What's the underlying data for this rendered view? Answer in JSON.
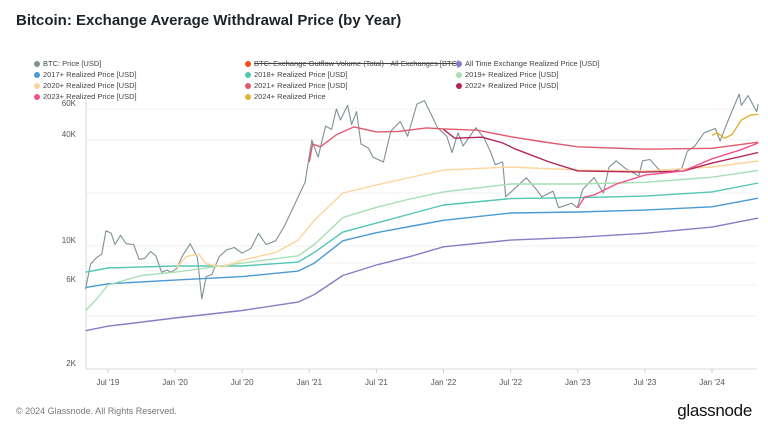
{
  "title": "Bitcoin: Exchange Average Withdrawal Price (by Year)",
  "footer": "© 2024 Glassnode. All Rights Reserved.",
  "logo": "glassnode",
  "chart_data": {
    "type": "line",
    "title": "Bitcoin: Exchange Average Withdrawal Price (by Year)",
    "y_scale": "log",
    "ylim": [
      2000,
      70000
    ],
    "xlim": [
      "2019-05",
      "2024-05"
    ],
    "grid": true,
    "legend_placement": "top",
    "y_ticks": [
      {
        "value": 2000,
        "label": "2K"
      },
      {
        "value": 4000,
        "label": ""
      },
      {
        "value": 6000,
        "label": "6K"
      },
      {
        "value": 8000,
        "label": ""
      },
      {
        "value": 10000,
        "label": "10K"
      },
      {
        "value": 20000,
        "label": ""
      },
      {
        "value": 40000,
        "label": "40K"
      },
      {
        "value": 60000,
        "label": "60K"
      }
    ],
    "x_ticks": [
      {
        "date": "2019-07",
        "label": "Jul '19"
      },
      {
        "date": "2020-01",
        "label": "Jan '20"
      },
      {
        "date": "2020-07",
        "label": "Jul '20"
      },
      {
        "date": "2021-01",
        "label": "Jan '21"
      },
      {
        "date": "2021-07",
        "label": "Jul '21"
      },
      {
        "date": "2022-01",
        "label": "Jan '22"
      },
      {
        "date": "2022-07",
        "label": "Jul '22"
      },
      {
        "date": "2023-01",
        "label": "Jan '23"
      },
      {
        "date": "2023-07",
        "label": "Jul '23"
      },
      {
        "date": "2024-01",
        "label": "Jan '24"
      }
    ],
    "series": [
      {
        "name": "BTC: Price [USD]",
        "color": "#7f9194",
        "width": 1.1,
        "points": [
          [
            "2019-05-01",
            5700
          ],
          [
            "2019-05-15",
            7900
          ],
          [
            "2019-06-01",
            8600
          ],
          [
            "2019-06-15",
            9000
          ],
          [
            "2019-06-26",
            12200
          ],
          [
            "2019-07-10",
            11800
          ],
          [
            "2019-07-20",
            10200
          ],
          [
            "2019-08-05",
            11500
          ],
          [
            "2019-08-20",
            10300
          ],
          [
            "2019-09-10",
            10200
          ],
          [
            "2019-09-25",
            8400
          ],
          [
            "2019-10-10",
            8500
          ],
          [
            "2019-10-26",
            9300
          ],
          [
            "2019-11-10",
            8800
          ],
          [
            "2019-11-25",
            7100
          ],
          [
            "2019-12-10",
            7300
          ],
          [
            "2019-12-20",
            7100
          ],
          [
            "2020-01-05",
            7400
          ],
          [
            "2020-01-20",
            8700
          ],
          [
            "2020-02-12",
            10300
          ],
          [
            "2020-03-01",
            8600
          ],
          [
            "2020-03-13",
            5000
          ],
          [
            "2020-03-25",
            6700
          ],
          [
            "2020-04-10",
            6900
          ],
          [
            "2020-04-30",
            8700
          ],
          [
            "2020-05-20",
            9500
          ],
          [
            "2020-06-10",
            9800
          ],
          [
            "2020-07-01",
            9100
          ],
          [
            "2020-07-25",
            9700
          ],
          [
            "2020-08-15",
            11800
          ],
          [
            "2020-09-05",
            10200
          ],
          [
            "2020-10-01",
            10700
          ],
          [
            "2020-10-25",
            13000
          ],
          [
            "2020-11-15",
            16000
          ],
          [
            "2020-12-01",
            19000
          ],
          [
            "2020-12-20",
            23000
          ],
          [
            "2021-01-08",
            40000
          ],
          [
            "2021-01-25",
            32000
          ],
          [
            "2021-02-15",
            48000
          ],
          [
            "2021-03-01",
            46000
          ],
          [
            "2021-03-14",
            60000
          ],
          [
            "2021-03-25",
            52000
          ],
          [
            "2021-04-14",
            63000
          ],
          [
            "2021-04-25",
            49000
          ],
          [
            "2021-05-08",
            58000
          ],
          [
            "2021-05-20",
            38000
          ],
          [
            "2021-06-10",
            36000
          ],
          [
            "2021-06-22",
            32000
          ],
          [
            "2021-07-20",
            30000
          ],
          [
            "2021-08-10",
            45000
          ],
          [
            "2021-09-05",
            51000
          ],
          [
            "2021-09-25",
            42000
          ],
          [
            "2021-10-20",
            64000
          ],
          [
            "2021-11-10",
            67000
          ],
          [
            "2021-11-28",
            56000
          ],
          [
            "2021-12-15",
            47000
          ],
          [
            "2022-01-10",
            42000
          ],
          [
            "2022-01-24",
            34000
          ],
          [
            "2022-02-10",
            44000
          ],
          [
            "2022-02-24",
            37000
          ],
          [
            "2022-03-28",
            47000
          ],
          [
            "2022-04-20",
            41000
          ],
          [
            "2022-05-08",
            34000
          ],
          [
            "2022-05-20",
            29000
          ],
          [
            "2022-06-10",
            30000
          ],
          [
            "2022-06-18",
            19000
          ],
          [
            "2022-07-10",
            21000
          ],
          [
            "2022-08-13",
            24400
          ],
          [
            "2022-09-10",
            21000
          ],
          [
            "2022-09-25",
            19000
          ],
          [
            "2022-10-25",
            20500
          ],
          [
            "2022-11-10",
            16500
          ],
          [
            "2022-12-15",
            17500
          ],
          [
            "2022-12-30",
            16500
          ],
          [
            "2023-01-15",
            21000
          ],
          [
            "2023-02-15",
            24500
          ],
          [
            "2023-03-10",
            20000
          ],
          [
            "2023-03-25",
            28000
          ],
          [
            "2023-04-14",
            30500
          ],
          [
            "2023-05-10",
            27500
          ],
          [
            "2023-06-15",
            25000
          ],
          [
            "2023-06-25",
            30500
          ],
          [
            "2023-07-15",
            31000
          ],
          [
            "2023-08-17",
            26000
          ],
          [
            "2023-09-15",
            26500
          ],
          [
            "2023-10-10",
            27500
          ],
          [
            "2023-10-25",
            34500
          ],
          [
            "2023-11-15",
            37000
          ],
          [
            "2023-12-10",
            44000
          ],
          [
            "2024-01-10",
            46500
          ],
          [
            "2024-01-23",
            39500
          ],
          [
            "2024-02-15",
            52000
          ],
          [
            "2024-03-14",
            73000
          ],
          [
            "2024-03-20",
            63000
          ],
          [
            "2024-04-08",
            71500
          ],
          [
            "2024-04-20",
            64000
          ],
          [
            "2024-05-01",
            58000
          ],
          [
            "2024-05-05",
            64000
          ]
        ]
      },
      {
        "name": "BTC: Exchange Outflow Volume (Total) - All Exchanges [BTC]",
        "color": "#f24d12",
        "hidden": true,
        "points": []
      },
      {
        "name": "All Time Exchange Realized Price [USD]",
        "color": "#8c7ac6",
        "width": 1.4,
        "points": [
          [
            "2019-05-01",
            3300
          ],
          [
            "2019-07-01",
            3500
          ],
          [
            "2020-01-01",
            3900
          ],
          [
            "2020-07-01",
            4300
          ],
          [
            "2020-12-01",
            4800
          ],
          [
            "2021-01-15",
            5300
          ],
          [
            "2021-04-01",
            6800
          ],
          [
            "2021-07-01",
            7800
          ],
          [
            "2021-10-01",
            8700
          ],
          [
            "2022-01-01",
            9900
          ],
          [
            "2022-07-01",
            10800
          ],
          [
            "2023-01-01",
            11200
          ],
          [
            "2023-07-01",
            11800
          ],
          [
            "2024-01-01",
            12800
          ],
          [
            "2024-05-05",
            14400
          ]
        ]
      },
      {
        "name": "2017+ Realized Price [USD]",
        "color": "#4a9ad4",
        "width": 1.4,
        "points": [
          [
            "2019-05-01",
            5800
          ],
          [
            "2019-07-01",
            6100
          ],
          [
            "2020-01-01",
            6400
          ],
          [
            "2020-07-01",
            6700
          ],
          [
            "2020-12-01",
            7200
          ],
          [
            "2021-01-15",
            8000
          ],
          [
            "2021-04-01",
            10700
          ],
          [
            "2021-07-01",
            11900
          ],
          [
            "2021-10-01",
            12900
          ],
          [
            "2022-01-01",
            14000
          ],
          [
            "2022-07-01",
            15400
          ],
          [
            "2023-01-01",
            15600
          ],
          [
            "2023-07-01",
            16000
          ],
          [
            "2024-01-01",
            16700
          ],
          [
            "2024-05-05",
            18700
          ]
        ]
      },
      {
        "name": "2018+ Realized Price [USD]",
        "color": "#52c6b4",
        "width": 1.4,
        "points": [
          [
            "2019-05-01",
            7100
          ],
          [
            "2019-07-01",
            7500
          ],
          [
            "2020-01-01",
            7700
          ],
          [
            "2020-07-01",
            7700
          ],
          [
            "2020-12-01",
            8100
          ],
          [
            "2021-01-15",
            9200
          ],
          [
            "2021-04-01",
            12000
          ],
          [
            "2021-07-01",
            13500
          ],
          [
            "2021-10-01",
            15200
          ],
          [
            "2022-01-01",
            17100
          ],
          [
            "2022-07-01",
            18600
          ],
          [
            "2023-01-01",
            18800
          ],
          [
            "2023-07-01",
            19200
          ],
          [
            "2024-01-01",
            20300
          ],
          [
            "2024-05-05",
            22800
          ]
        ]
      },
      {
        "name": "2019+ Realized Price [USD]",
        "color": "#a6dfb4",
        "width": 1.4,
        "points": [
          [
            "2019-05-01",
            4300
          ],
          [
            "2019-06-01",
            5000
          ],
          [
            "2019-07-01",
            6000
          ],
          [
            "2019-10-01",
            6800
          ],
          [
            "2020-01-01",
            7100
          ],
          [
            "2020-07-01",
            8000
          ],
          [
            "2020-12-01",
            8800
          ],
          [
            "2021-01-15",
            10200
          ],
          [
            "2021-04-01",
            14500
          ],
          [
            "2021-07-01",
            16600
          ],
          [
            "2021-10-01",
            18500
          ],
          [
            "2022-01-01",
            20300
          ],
          [
            "2022-07-01",
            22500
          ],
          [
            "2023-01-01",
            22500
          ],
          [
            "2023-07-01",
            23000
          ],
          [
            "2024-01-01",
            24600
          ],
          [
            "2024-05-05",
            26900
          ]
        ]
      },
      {
        "name": "2020+ Realized Price [USD]",
        "color": "#fdd49a",
        "width": 1.4,
        "points": [
          [
            "2020-01-01",
            7400
          ],
          [
            "2020-02-01",
            8700
          ],
          [
            "2020-03-05",
            9000
          ],
          [
            "2020-03-25",
            7900
          ],
          [
            "2020-05-10",
            7600
          ],
          [
            "2020-07-01",
            8300
          ],
          [
            "2020-10-01",
            9200
          ],
          [
            "2020-12-01",
            10800
          ],
          [
            "2021-01-15",
            14000
          ],
          [
            "2021-04-01",
            20000
          ],
          [
            "2021-07-01",
            22200
          ],
          [
            "2021-10-01",
            24500
          ],
          [
            "2022-01-01",
            27000
          ],
          [
            "2022-07-01",
            28100
          ],
          [
            "2023-01-01",
            27000
          ],
          [
            "2023-07-01",
            26700
          ],
          [
            "2024-01-01",
            28100
          ],
          [
            "2024-05-05",
            30400
          ]
        ]
      },
      {
        "name": "2021+ Realized Price [USD]",
        "color": "#e05a6e",
        "width": 1.4,
        "points": [
          [
            "2021-01-01",
            30000
          ],
          [
            "2021-01-10",
            38000
          ],
          [
            "2021-02-01",
            36600
          ],
          [
            "2021-03-15",
            43000
          ],
          [
            "2021-05-01",
            47500
          ],
          [
            "2021-07-01",
            44500
          ],
          [
            "2021-09-01",
            44800
          ],
          [
            "2021-11-15",
            46900
          ],
          [
            "2022-01-01",
            46300
          ],
          [
            "2022-04-01",
            45500
          ],
          [
            "2022-07-01",
            41800
          ],
          [
            "2022-10-01",
            39000
          ],
          [
            "2023-01-01",
            36600
          ],
          [
            "2023-07-01",
            35500
          ],
          [
            "2024-01-01",
            35900
          ],
          [
            "2024-05-05",
            38900
          ]
        ]
      },
      {
        "name": "2022+ Realized Price [USD]",
        "color": "#b2245a",
        "width": 1.4,
        "points": [
          [
            "2022-01-01",
            46000
          ],
          [
            "2022-02-01",
            41000
          ],
          [
            "2022-04-15",
            41500
          ],
          [
            "2022-06-10",
            38500
          ],
          [
            "2022-07-15",
            35500
          ],
          [
            "2022-10-15",
            30000
          ],
          [
            "2023-01-01",
            26700
          ],
          [
            "2023-07-01",
            26300
          ],
          [
            "2023-10-15",
            26700
          ],
          [
            "2024-01-01",
            29600
          ],
          [
            "2024-05-05",
            34000
          ]
        ]
      },
      {
        "name": "2023+ Realized Price [USD]",
        "color": "#f45189",
        "width": 1.4,
        "points": [
          [
            "2023-01-01",
            16500
          ],
          [
            "2023-01-20",
            19000
          ],
          [
            "2023-02-15",
            19500
          ],
          [
            "2023-04-15",
            22500
          ],
          [
            "2023-07-01",
            25300
          ],
          [
            "2023-10-15",
            26700
          ],
          [
            "2024-01-01",
            31300
          ],
          [
            "2024-03-15",
            35000
          ],
          [
            "2024-05-05",
            38500
          ]
        ]
      },
      {
        "name": "2024+ Realized Price",
        "color": "#e3b431",
        "width": 1.4,
        "points": [
          [
            "2024-01-01",
            42500
          ],
          [
            "2024-01-15",
            44000
          ],
          [
            "2024-02-05",
            41000
          ],
          [
            "2024-02-25",
            43000
          ],
          [
            "2024-03-20",
            52000
          ],
          [
            "2024-04-15",
            55500
          ],
          [
            "2024-05-05",
            56000
          ]
        ]
      }
    ]
  }
}
